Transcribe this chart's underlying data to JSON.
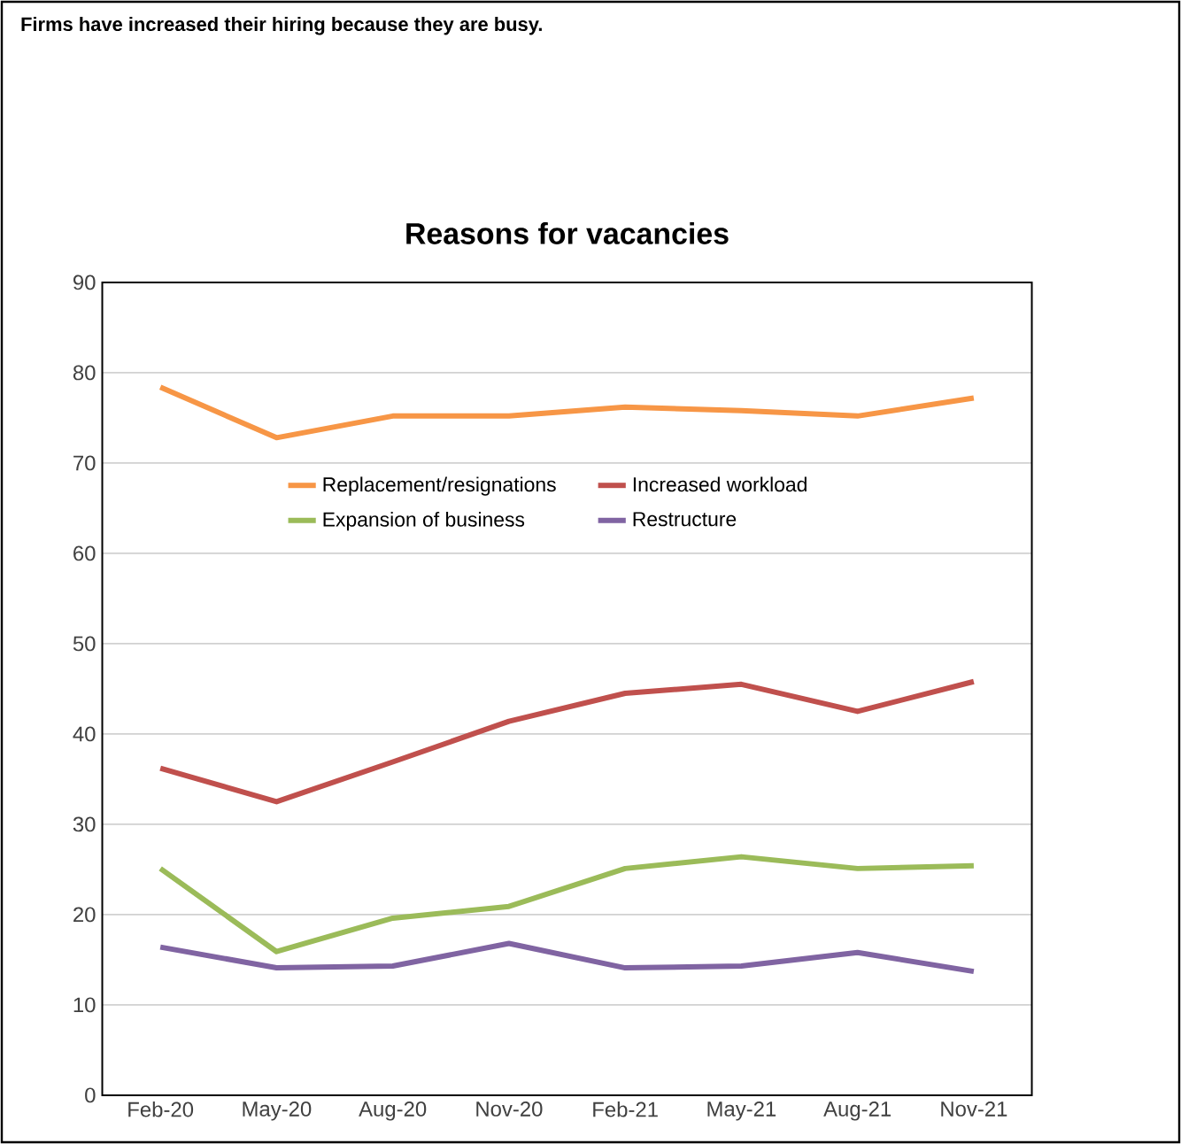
{
  "chart_data": {
    "type": "line",
    "subtitle": "Firms have increased their hiring because they are busy.",
    "title": "Reasons for vacancies",
    "categories": [
      "Feb-20",
      "May-20",
      "Aug-20",
      "Nov-20",
      "Feb-21",
      "May-21",
      "Aug-21",
      "Nov-21"
    ],
    "series": [
      {
        "name": "Replacement/resignations",
        "color": "#f79646",
        "values": [
          78.4,
          72.8,
          75.2,
          75.2,
          76.2,
          75.8,
          75.2,
          77.2
        ]
      },
      {
        "name": "Increased workload",
        "color": "#c0504d",
        "values": [
          36.2,
          32.5,
          36.9,
          41.4,
          44.5,
          45.5,
          42.5,
          45.8
        ]
      },
      {
        "name": "Expansion of business",
        "color": "#9bbb59",
        "values": [
          25.1,
          15.9,
          19.6,
          20.9,
          25.1,
          26.4,
          25.1,
          25.4
        ]
      },
      {
        "name": "Restructure",
        "color": "#8064a2",
        "values": [
          16.4,
          14.1,
          14.3,
          16.8,
          14.1,
          14.3,
          15.8,
          13.7
        ]
      }
    ],
    "ylim": [
      0,
      90
    ],
    "yticks": [
      0,
      10,
      20,
      30,
      40,
      50,
      60,
      70,
      80,
      90
    ],
    "grid": "y",
    "legend": "top",
    "marker": "none",
    "line_style": "solid"
  }
}
